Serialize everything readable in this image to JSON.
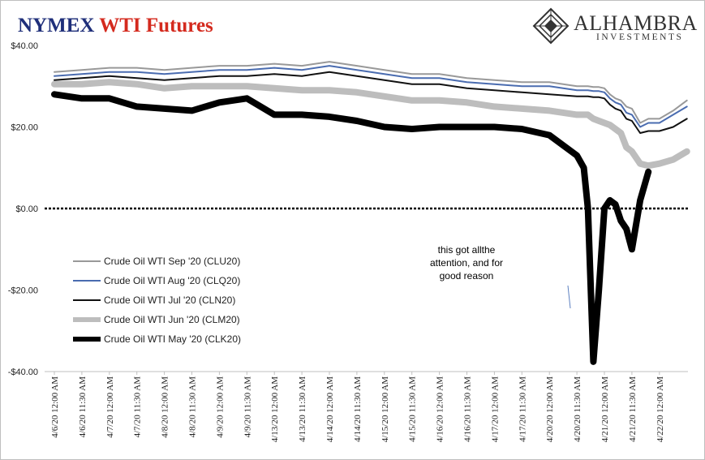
{
  "header": {
    "title_part1": "NYMEX",
    "title_part2": "WTI Futures",
    "logo_text": "ALHAMBRA",
    "logo_sub": "INVESTMENTS"
  },
  "colors": {
    "sep": "#999999",
    "aug": "#4a6cb0",
    "jul": "#111111",
    "jun": "#bdbdbd",
    "may": "#000000",
    "title_blue": "#1f2f7a",
    "title_red": "#d42a1e"
  },
  "annotation": {
    "line1": "this got allthe",
    "line2": "attention, and for",
    "line3": "good reason"
  },
  "chart_data": {
    "type": "line",
    "title": "NYMEX WTI Futures",
    "ylim": [
      -40,
      40
    ],
    "y_ticks": [
      "$40.00",
      "$20.00",
      "$0.00",
      "-$20.00",
      "-$40.00"
    ],
    "y_tick_values": [
      40,
      20,
      0,
      -20,
      -40
    ],
    "zero_line": "dotted",
    "legend_position": "left-middle",
    "x_tick_labels": [
      "4/6/20 12:00 AM",
      "4/6/20 11:30 AM",
      "4/7/20 12:00 AM",
      "4/7/20 11:30 AM",
      "4/8/20 12:00 AM",
      "4/8/20 11:30 AM",
      "4/9/20 12:00 AM",
      "4/9/20 11:30 AM",
      "4/13/20 12:00 AM",
      "4/13/20 11:30 AM",
      "4/14/20 12:00 AM",
      "4/14/20 11:30 AM",
      "4/15/20 12:00 AM",
      "4/15/20 11:30 AM",
      "4/16/20 12:00 AM",
      "4/16/20 11:30 AM",
      "4/17/20 12:00 AM",
      "4/17/20 11:30 AM",
      "4/20/20 12:00 AM",
      "4/20/20 11:30 AM",
      "4/21/20 12:00 AM",
      "4/21/20 11:30 AM",
      "4/22/20 12:00 AM"
    ],
    "x": [
      0,
      1,
      2,
      3,
      4,
      5,
      6,
      7,
      8,
      9,
      10,
      11,
      12,
      13,
      14,
      15,
      16,
      17,
      18,
      19,
      19.25,
      19.4,
      19.6,
      19.8,
      20,
      20.2,
      20.4,
      20.6,
      20.8,
      21,
      21.3,
      21.6,
      22,
      22.5,
      23
    ],
    "series": [
      {
        "name": "Crude Oil WTI Sep '20 (CLU20)",
        "color": "#999999",
        "width": 2,
        "values": [
          33.5,
          34,
          34.5,
          34.5,
          34,
          34.5,
          35,
          35,
          35.5,
          35,
          36,
          35,
          34,
          33,
          33,
          32,
          31.5,
          31,
          31,
          30,
          30,
          30,
          29.8,
          29.8,
          29.5,
          28,
          27,
          26.5,
          25,
          24.5,
          21,
          22,
          22,
          24,
          26.5
        ]
      },
      {
        "name": "Crude Oil WTI Aug '20 (CLQ20)",
        "color": "#4a6cb0",
        "width": 2,
        "values": [
          32.5,
          33,
          33.5,
          33.5,
          33,
          33.5,
          34,
          34,
          34.5,
          34,
          35,
          34,
          33,
          32,
          32,
          31,
          30.5,
          30,
          30,
          29,
          29,
          29,
          28.8,
          28.8,
          28.5,
          27,
          26,
          25.5,
          23.5,
          23,
          20,
          21,
          21,
          23,
          25
        ]
      },
      {
        "name": "Crude Oil WTI Jul '20 (CLN20)",
        "color": "#111111",
        "width": 2,
        "values": [
          31.5,
          32,
          32.5,
          32,
          31.5,
          32,
          32.5,
          32.5,
          33,
          32.5,
          33.5,
          32.5,
          31.5,
          30.5,
          30.5,
          29.5,
          29,
          28.5,
          28,
          27.5,
          27.5,
          27.5,
          27.3,
          27.3,
          27,
          25.5,
          24.5,
          24,
          22,
          21.5,
          18.5,
          19,
          19,
          20,
          22
        ]
      },
      {
        "name": "Crude Oil WTI Jun '20 (CLM20)",
        "color": "#bdbdbd",
        "width": 8,
        "values": [
          30.5,
          30.5,
          31,
          30.5,
          29.5,
          30,
          30,
          30,
          29.5,
          29,
          29,
          28.5,
          27.5,
          26.5,
          26.5,
          26,
          25,
          24.5,
          24,
          23,
          23,
          23,
          22,
          21.5,
          21,
          20.5,
          19.5,
          18.5,
          15,
          14,
          11,
          10.5,
          11,
          12,
          14
        ]
      },
      {
        "name": "Crude Oil WTI May '20 (CLK20)",
        "color": "#000000",
        "width": 8,
        "values": [
          28,
          27,
          27,
          25,
          24.5,
          24,
          26,
          27,
          23,
          23,
          22.5,
          21.5,
          20,
          19.5,
          20,
          20,
          20,
          19.5,
          18,
          13,
          10,
          0,
          -37.6,
          -20,
          0,
          2,
          1,
          -3,
          -5,
          -10,
          2,
          9,
          null,
          null,
          null
        ]
      }
    ]
  }
}
